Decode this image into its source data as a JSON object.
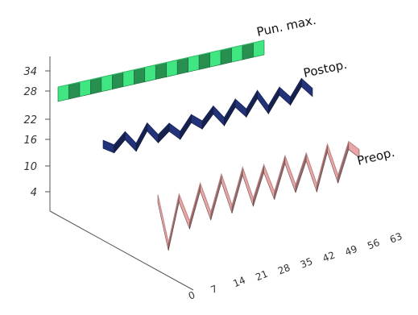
{
  "chart_data": {
    "type": "3d-ribbon",
    "title": "",
    "xlabel": "",
    "ylabel": "",
    "y_ticks": [
      "34",
      "28",
      "22",
      "16",
      "10",
      "4"
    ],
    "x_tick_text": "0 7 14 21 28 35 42 49 56 63",
    "x_ticks": [
      "0",
      "7",
      "14",
      "21",
      "28",
      "35",
      "42",
      "49",
      "56",
      "63"
    ],
    "series": [
      {
        "name": "Pun. max.",
        "color": "#3fe681",
        "values": [
          32,
          32,
          32,
          32,
          32,
          32,
          32,
          32,
          32,
          32,
          32,
          32,
          32,
          32,
          32,
          32,
          32,
          32,
          32,
          32
        ]
      },
      {
        "name": "Postop.",
        "color": "#23337a",
        "values": [
          16,
          12,
          18,
          10,
          20,
          12,
          17,
          11,
          19,
          14,
          21,
          13,
          22,
          15,
          24,
          14,
          23,
          16,
          25,
          18
        ]
      },
      {
        "name": "Preop.",
        "color": "#e9a6a6",
        "values": [
          8,
          -16,
          6,
          -8,
          9,
          -6,
          11,
          -5,
          12,
          -4,
          11,
          -3,
          13,
          -2,
          12,
          -4,
          14,
          -2,
          13,
          8
        ]
      }
    ]
  }
}
